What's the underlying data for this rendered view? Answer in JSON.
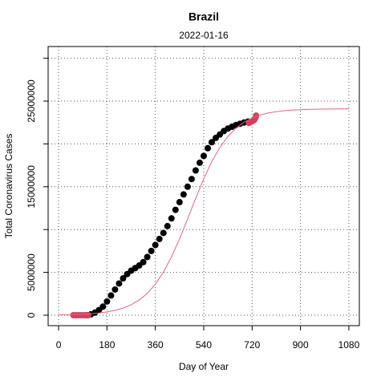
{
  "chart_data": {
    "type": "scatter",
    "title": "Brazil",
    "subtitle": "2022-01-16",
    "x_label": "Day of Year",
    "y_label": "Total Coronavirus Cases",
    "xlim": [
      -39,
      1119
    ],
    "ylim": [
      -1220000,
      31370000
    ],
    "xticks": [
      0,
      180,
      360,
      540,
      720,
      900,
      1080
    ],
    "yticks": [
      0,
      5000000,
      15000000,
      25000000
    ],
    "ygrid": [
      0,
      5000000,
      10000000,
      15000000,
      20000000,
      25000000,
      30000000
    ],
    "grid": true,
    "series": [
      {
        "type": "scatter",
        "color": "#000000",
        "x": [
          105,
          120,
          135,
          150,
          165,
          180,
          195,
          210,
          225,
          240,
          255,
          270,
          285,
          300,
          315,
          330,
          345,
          360,
          375,
          390,
          405,
          420,
          435,
          450,
          465,
          480,
          495,
          510,
          525,
          540,
          555,
          570,
          585,
          600,
          615,
          630,
          645,
          660,
          675,
          690,
          705
        ],
        "values": [
          0,
          100000,
          300000,
          600000,
          1000000,
          1600000,
          2300000,
          3000000,
          3700000,
          4300000,
          4800000,
          5200000,
          5500000,
          5800000,
          6200000,
          6800000,
          7500000,
          8200000,
          8900000,
          9600000,
          10400000,
          11300000,
          12300000,
          13200000,
          14100000,
          15000000,
          15900000,
          16900000,
          17800000,
          18600000,
          19500000,
          20200000,
          20700000,
          21100000,
          21500000,
          21800000,
          22000000,
          22200000,
          22350000,
          22500000,
          22600000
        ]
      },
      {
        "type": "scatter",
        "color": "#d1425f",
        "x": [
          55,
          65,
          75,
          85,
          95,
          105,
          110,
          708,
          714,
          720,
          726,
          730,
          733,
          735
        ],
        "values": [
          0,
          0,
          0,
          0,
          0,
          0,
          0,
          22450000,
          22550000,
          22650000,
          22750000,
          22900000,
          23100000,
          23300000
        ]
      },
      {
        "type": "line",
        "color": "#e06680",
        "x": [
          0,
          30,
          60,
          90,
          120,
          150,
          180,
          210,
          240,
          270,
          300,
          330,
          360,
          390,
          420,
          450,
          480,
          510,
          540,
          570,
          600,
          630,
          660,
          690,
          720,
          750,
          780,
          810,
          840,
          870,
          900,
          930,
          960,
          990,
          1020,
          1050,
          1080
        ],
        "values": [
          35000,
          52175,
          77700,
          115800,
          172400,
          256200,
          380300,
          563100,
          830500,
          1218400,
          1773400,
          2553000,
          3619000,
          5031000,
          6802000,
          8910000,
          11246000,
          13647000,
          15929000,
          17932000,
          19582000,
          20873000,
          21837000,
          22534000,
          23027000,
          23370000,
          23606000,
          23767000,
          23876000,
          23949000,
          23999000,
          24032000,
          24054000,
          24069000,
          24080000,
          24086000,
          24091000
        ]
      }
    ]
  }
}
